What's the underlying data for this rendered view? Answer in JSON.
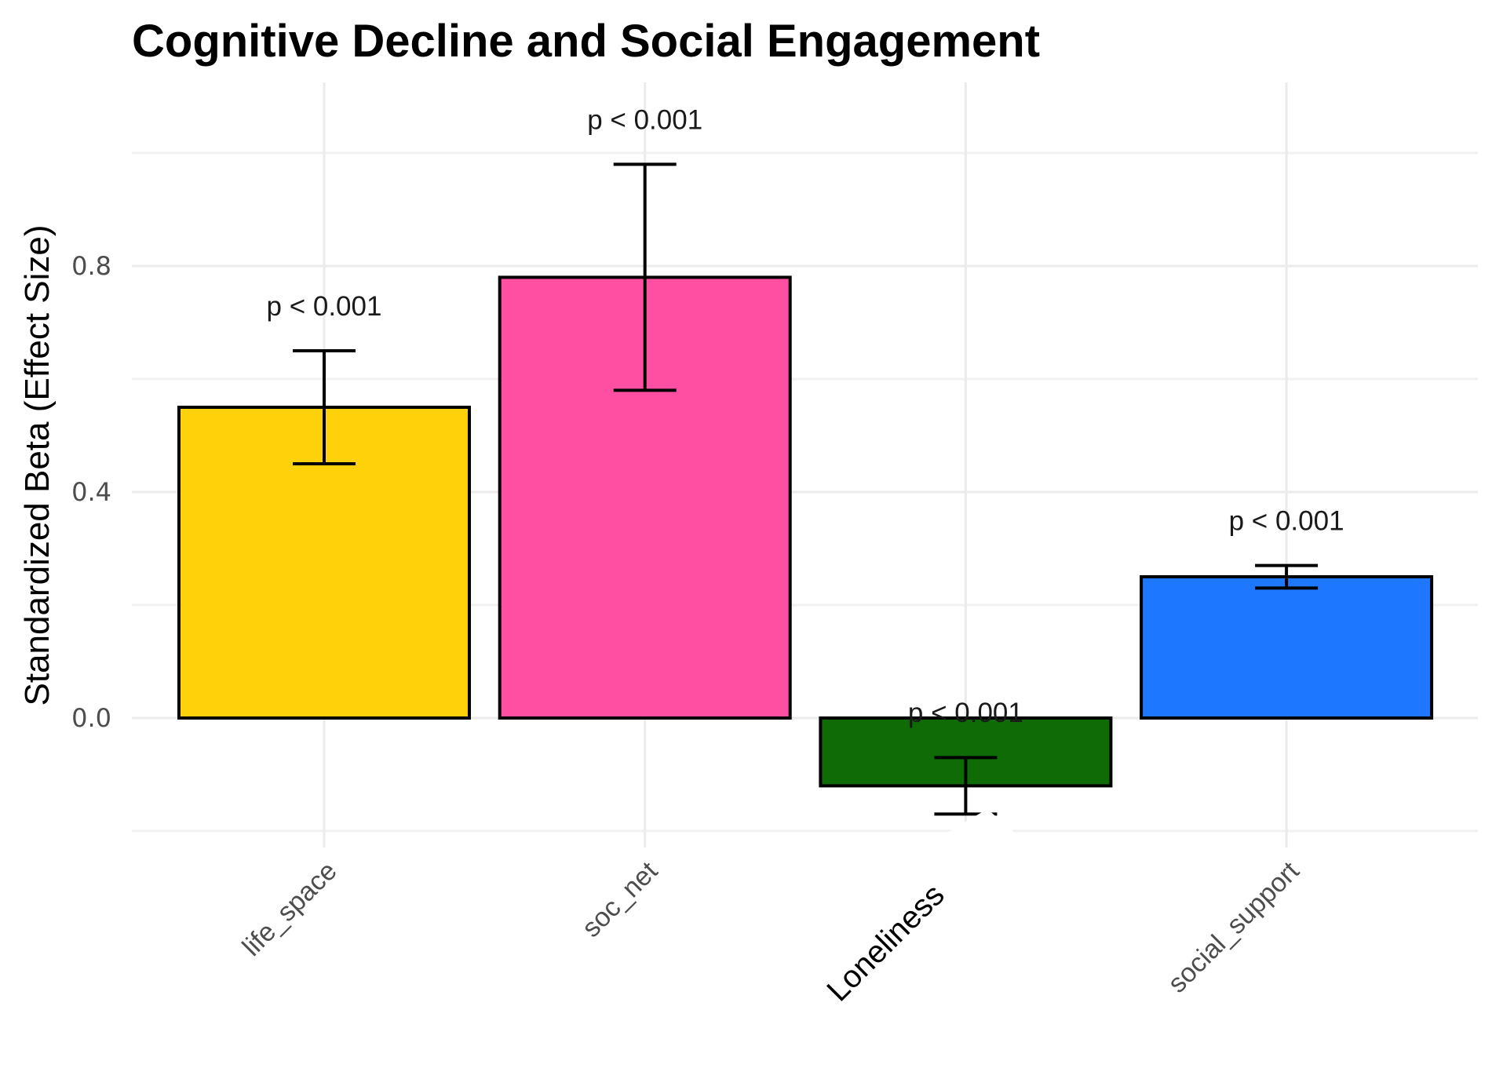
{
  "chart_data": {
    "type": "bar",
    "title": "Cognitive Decline and Social Engagement",
    "xlabel": "",
    "ylabel": "Standardized Beta (Effect Size)",
    "ylim": [
      -0.2,
      1.0
    ],
    "yticks": [
      0.0,
      0.4,
      0.8
    ],
    "ytick_labels": [
      "0.0",
      "0.4",
      "0.8"
    ],
    "minor_gridlines": [
      -0.2,
      0.2,
      0.6,
      1.0
    ],
    "grid": true,
    "legend": "none",
    "x_tick_rotation_deg": 45,
    "categories": [
      "life_space",
      "soc_net",
      "Loneliness",
      "social_support"
    ],
    "values": [
      0.55,
      0.78,
      -0.12,
      0.25
    ],
    "error_lower": [
      0.45,
      0.58,
      -0.17,
      0.23
    ],
    "error_upper": [
      0.65,
      0.98,
      -0.07,
      0.27
    ],
    "annotations": [
      "p < 0.001",
      "p < 0.001",
      "p < 0.001",
      "p < 0.001"
    ],
    "colors": [
      "#FFD10A",
      "#FF4FA3",
      "#0E6B06",
      "#1E78FF"
    ],
    "emphasized_category": "Loneliness"
  }
}
